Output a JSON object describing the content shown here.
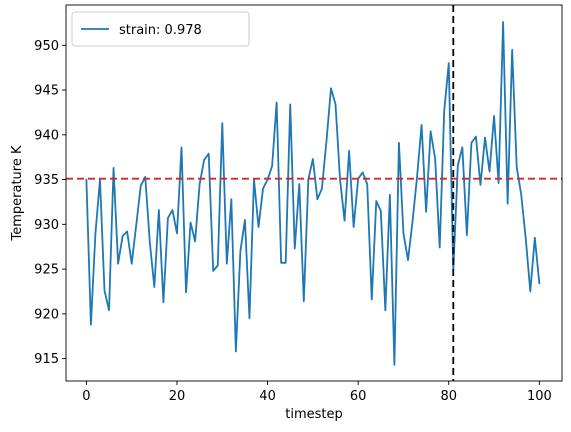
{
  "chart_data": {
    "type": "line",
    "title": "",
    "xlabel": "timestep",
    "ylabel": "Temperature K",
    "xlim": [
      -4.5,
      105
    ],
    "ylim": [
      912.5,
      954.5
    ],
    "xticks": [
      0,
      20,
      40,
      60,
      80,
      100
    ],
    "yticks": [
      915,
      920,
      925,
      930,
      935,
      940,
      945,
      950
    ],
    "grid": false,
    "legend_position": "upper-left",
    "hline": {
      "y": 935.1,
      "color": "#d62728",
      "style": "dashed"
    },
    "vline": {
      "x": 81,
      "color": "#000000",
      "style": "dashed"
    },
    "series": [
      {
        "name": "strain: 0.978",
        "color": "#1f77b4",
        "x": [
          0,
          1,
          2,
          3,
          4,
          5,
          6,
          7,
          8,
          9,
          10,
          11,
          12,
          13,
          14,
          15,
          16,
          17,
          18,
          19,
          20,
          21,
          22,
          23,
          24,
          25,
          26,
          27,
          28,
          29,
          30,
          31,
          32,
          33,
          34,
          35,
          36,
          37,
          38,
          39,
          40,
          41,
          42,
          43,
          44,
          45,
          46,
          47,
          48,
          49,
          50,
          51,
          52,
          53,
          54,
          55,
          56,
          57,
          58,
          59,
          60,
          61,
          62,
          63,
          64,
          65,
          66,
          67,
          68,
          69,
          70,
          71,
          72,
          73,
          74,
          75,
          76,
          77,
          78,
          79,
          80,
          81,
          82,
          83,
          84,
          85,
          86,
          87,
          88,
          89,
          90,
          91,
          92,
          93,
          94,
          95,
          96,
          97,
          98,
          99,
          100
        ],
        "values": [
          935.0,
          918.8,
          929.0,
          935.0,
          922.6,
          920.4,
          936.3,
          925.6,
          928.7,
          929.2,
          925.6,
          929.9,
          934.3,
          935.3,
          928.0,
          923.0,
          931.6,
          921.3,
          930.7,
          931.6,
          929.0,
          938.6,
          922.4,
          930.2,
          928.1,
          934.5,
          937.2,
          937.9,
          924.8,
          925.4,
          941.3,
          925.6,
          932.8,
          915.8,
          927.0,
          930.5,
          919.5,
          935.0,
          929.7,
          934.0,
          935.0,
          936.5,
          943.6,
          925.7,
          925.7,
          943.4,
          927.3,
          934.5,
          921.4,
          935.0,
          937.3,
          932.8,
          934.0,
          939.3,
          945.2,
          943.4,
          935.0,
          930.4,
          938.2,
          929.7,
          935.1,
          935.8,
          934.5,
          921.6,
          932.6,
          931.5,
          920.4,
          933.3,
          914.3,
          939.1,
          929.0,
          926.0,
          930.3,
          935.3,
          941.1,
          931.4,
          940.4,
          937.3,
          927.4,
          942.7,
          948.0,
          924.8,
          936.6,
          938.6,
          928.8,
          939.1,
          939.8,
          934.4,
          939.7,
          935.9,
          942.1,
          934.6,
          952.6,
          932.3,
          949.5,
          936.4,
          933.3,
          928.4,
          922.5,
          928.5,
          923.4
        ]
      }
    ]
  }
}
